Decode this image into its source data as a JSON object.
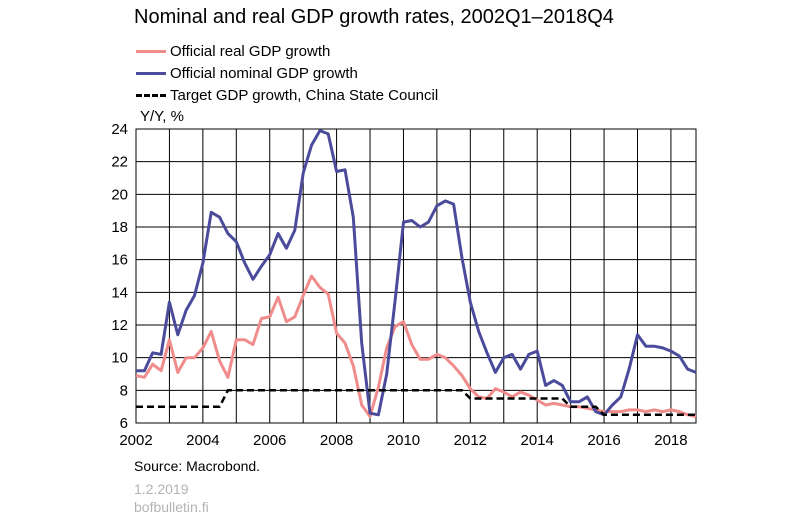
{
  "header": {
    "title": "Nominal and real GDP growth rates, 2002Q1–2018Q4"
  },
  "footer": {
    "source": "Source: Macrobond.",
    "date": "1.2.2019",
    "site": "bofbulletin.fi"
  },
  "chart_data": {
    "type": "line",
    "title": "Nominal and real GDP growth rates, 2002Q1–2018Q4",
    "xlabel": "",
    "ylabel": "Y/Y, %",
    "xlim": [
      2002.0,
      2018.75
    ],
    "ylim": [
      6,
      24
    ],
    "yticks": [
      6,
      8,
      10,
      12,
      14,
      16,
      18,
      20,
      22,
      24
    ],
    "xticks": [
      2002,
      2004,
      2006,
      2008,
      2010,
      2012,
      2014,
      2016,
      2018
    ],
    "grid": true,
    "legend_position": "top-left",
    "x": [
      2002.0,
      2002.25,
      2002.5,
      2002.75,
      2003.0,
      2003.25,
      2003.5,
      2003.75,
      2004.0,
      2004.25,
      2004.5,
      2004.75,
      2005.0,
      2005.25,
      2005.5,
      2005.75,
      2006.0,
      2006.25,
      2006.5,
      2006.75,
      2007.0,
      2007.25,
      2007.5,
      2007.75,
      2008.0,
      2008.25,
      2008.5,
      2008.75,
      2009.0,
      2009.25,
      2009.5,
      2009.75,
      2010.0,
      2010.25,
      2010.5,
      2010.75,
      2011.0,
      2011.25,
      2011.5,
      2011.75,
      2012.0,
      2012.25,
      2012.5,
      2012.75,
      2013.0,
      2013.25,
      2013.5,
      2013.75,
      2014.0,
      2014.25,
      2014.5,
      2014.75,
      2015.0,
      2015.25,
      2015.5,
      2015.75,
      2016.0,
      2016.25,
      2016.5,
      2016.75,
      2017.0,
      2017.25,
      2017.5,
      2017.75,
      2018.0,
      2018.25,
      2018.5,
      2018.75
    ],
    "series": [
      {
        "name": "Official real GDP growth",
        "color": "#f08c8c",
        "style": "solid",
        "values": [
          8.9,
          8.8,
          9.6,
          9.2,
          11.1,
          9.1,
          10.0,
          10.0,
          10.6,
          11.6,
          9.8,
          8.8,
          11.1,
          11.1,
          10.8,
          12.4,
          12.5,
          13.7,
          12.2,
          12.5,
          13.8,
          15.0,
          14.3,
          13.9,
          11.5,
          10.9,
          9.5,
          7.1,
          6.4,
          8.2,
          10.6,
          11.9,
          12.2,
          10.8,
          9.9,
          9.9,
          10.2,
          10.0,
          9.5,
          8.9,
          8.1,
          7.6,
          7.5,
          8.1,
          7.9,
          7.6,
          7.9,
          7.7,
          7.4,
          7.1,
          7.2,
          7.1,
          7.0,
          7.0,
          6.9,
          6.8,
          6.7,
          6.7,
          6.7,
          6.8,
          6.8,
          6.7,
          6.8,
          6.7,
          6.8,
          6.7,
          6.5,
          6.4
        ]
      },
      {
        "name": "Official nominal GDP growth",
        "color": "#4b4b9b",
        "style": "solid",
        "values": [
          9.2,
          9.2,
          10.3,
          10.2,
          13.4,
          11.4,
          12.9,
          13.8,
          15.8,
          18.9,
          18.6,
          17.6,
          17.1,
          15.8,
          14.8,
          15.6,
          16.3,
          17.6,
          16.7,
          17.8,
          21.3,
          23.0,
          23.9,
          23.7,
          21.4,
          21.5,
          18.6,
          10.9,
          6.6,
          6.5,
          9.0,
          13.5,
          18.3,
          18.4,
          18.0,
          18.3,
          19.3,
          19.6,
          19.4,
          16.1,
          13.4,
          11.6,
          10.3,
          9.1,
          10.0,
          10.2,
          9.3,
          10.2,
          10.4,
          8.3,
          8.6,
          8.3,
          7.3,
          7.3,
          7.6,
          6.7,
          6.5,
          7.1,
          7.6,
          9.3,
          11.4,
          10.7,
          10.7,
          10.6,
          10.4,
          10.1,
          9.3,
          9.1
        ]
      },
      {
        "name": "Target GDP growth, China State Council",
        "color": "#000000",
        "style": "dashed",
        "values": [
          7.0,
          7.0,
          7.0,
          7.0,
          7.0,
          7.0,
          7.0,
          7.0,
          7.0,
          7.0,
          7.0,
          8.0,
          8.0,
          8.0,
          8.0,
          8.0,
          8.0,
          8.0,
          8.0,
          8.0,
          8.0,
          8.0,
          8.0,
          8.0,
          8.0,
          8.0,
          8.0,
          8.0,
          8.0,
          8.0,
          8.0,
          8.0,
          8.0,
          8.0,
          8.0,
          8.0,
          8.0,
          8.0,
          8.0,
          8.0,
          7.5,
          7.5,
          7.5,
          7.5,
          7.5,
          7.5,
          7.5,
          7.5,
          7.5,
          7.5,
          7.5,
          7.5,
          7.0,
          7.0,
          7.0,
          7.0,
          6.5,
          6.5,
          6.5,
          6.5,
          6.5,
          6.5,
          6.5,
          6.5,
          6.5,
          6.5,
          6.5,
          6.5
        ]
      }
    ]
  }
}
